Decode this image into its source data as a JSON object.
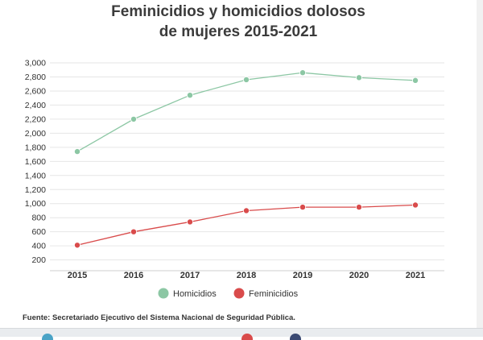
{
  "title": {
    "line1": "Feminicidios y homicidios dolosos",
    "line2": "de mujeres 2015-2021"
  },
  "source": "Fuente: Secretariado Ejecutivo del Sistema Nacional de Seguridad Pública.",
  "chart_data": {
    "type": "line",
    "title": "Feminicidios y homicidios dolosos de mujeres 2015-2021",
    "categories": [
      "2015",
      "2016",
      "2017",
      "2018",
      "2019",
      "2020",
      "2021"
    ],
    "series": [
      {
        "name": "Homicidios",
        "color": "#8cc7a4",
        "values": [
          1740,
          2200,
          2540,
          2760,
          2860,
          2790,
          2750
        ]
      },
      {
        "name": "Feminicidios",
        "color": "#d94b4b",
        "values": [
          410,
          600,
          740,
          900,
          950,
          950,
          980
        ]
      }
    ],
    "y_ticks": [
      200,
      400,
      600,
      800,
      1000,
      1200,
      1400,
      1600,
      1800,
      2000,
      2200,
      2400,
      2600,
      2800,
      3000
    ],
    "y_tick_labels": [
      "200",
      "400",
      "600",
      "800",
      "1,000",
      "1,200",
      "1,400",
      "1,600",
      "1,800",
      "2,000",
      "2,200",
      "2,400",
      "2,600",
      "2,800",
      "3,000"
    ],
    "ylim": [
      150,
      3000
    ],
    "xlabel": "",
    "ylabel": "",
    "grid": true,
    "legend_position": "bottom-center"
  }
}
